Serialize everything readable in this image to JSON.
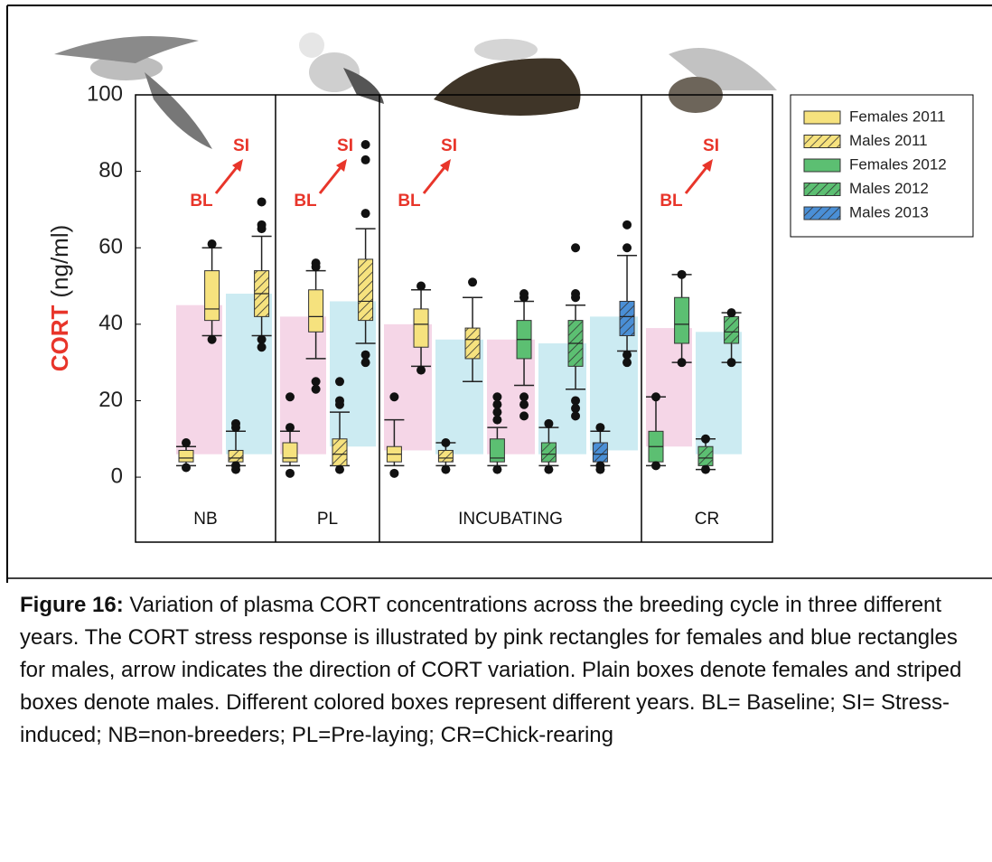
{
  "chart_data": {
    "type": "box",
    "ylabel": "CORT",
    "ylabel_unit": "(ng/ml)",
    "ylim": [
      -17,
      100
    ],
    "yticks": [
      0,
      20,
      40,
      60,
      80,
      100
    ],
    "groups": [
      "NB",
      "PL",
      "INCUBATING",
      "CR"
    ],
    "annotations": {
      "baseline": "BL",
      "stress": "SI",
      "color": "#e8352a"
    },
    "series": [
      {
        "name": "Females 2011",
        "color": "#f6e27e",
        "hatch": false,
        "response_color": "#f3cfe3"
      },
      {
        "name": "Males 2011",
        "color": "#f6e27e",
        "hatch": true,
        "response_color": "#c3e8f0"
      },
      {
        "name": "Females 2012",
        "color": "#5cbf72",
        "hatch": false,
        "response_color": "#f3cfe3"
      },
      {
        "name": "Males 2012",
        "color": "#5cbf72",
        "hatch": true,
        "response_color": "#c3e8f0"
      },
      {
        "name": "Males 2013",
        "color": "#4a8fd6",
        "hatch": true,
        "response_color": "#c3e8f0"
      }
    ],
    "pairs": [
      {
        "group": 0,
        "series": 0,
        "response": [
          6,
          45
        ],
        "bl": {
          "stats": [
            3,
            4,
            5,
            7,
            8
          ],
          "outliers": [
            9,
            2.5
          ]
        },
        "si": {
          "stats": [
            37,
            41,
            44,
            54,
            60
          ],
          "outliers": [
            61,
            36
          ]
        }
      },
      {
        "group": 0,
        "series": 1,
        "response": [
          6,
          48
        ],
        "bl": {
          "stats": [
            3,
            4,
            5,
            7,
            12
          ],
          "outliers": [
            14,
            13,
            2,
            3
          ]
        },
        "si": {
          "stats": [
            37,
            42,
            48,
            54,
            63
          ],
          "outliers": [
            72,
            66,
            65,
            36,
            34
          ]
        }
      },
      {
        "group": 1,
        "series": 0,
        "response": [
          6,
          42
        ],
        "bl": {
          "stats": [
            3,
            4,
            5,
            9,
            12
          ],
          "outliers": [
            21,
            13,
            1
          ]
        },
        "si": {
          "stats": [
            31,
            38,
            42,
            49,
            54
          ],
          "outliers": [
            56,
            55,
            25,
            23
          ]
        }
      },
      {
        "group": 1,
        "series": 1,
        "response": [
          8,
          46
        ],
        "bl": {
          "stats": [
            3,
            3,
            6,
            10,
            17
          ],
          "outliers": [
            25,
            20,
            19,
            2
          ]
        },
        "si": {
          "stats": [
            35,
            41,
            46,
            57,
            65
          ],
          "outliers": [
            87,
            83,
            69,
            32,
            30
          ]
        }
      },
      {
        "group": 2,
        "series": 0,
        "response": [
          7,
          40
        ],
        "bl": {
          "stats": [
            3,
            4,
            6,
            8,
            15
          ],
          "outliers": [
            21,
            1
          ]
        },
        "si": {
          "stats": [
            29,
            34,
            40,
            44,
            49
          ],
          "outliers": [
            50,
            28
          ]
        }
      },
      {
        "group": 2,
        "series": 1,
        "response": [
          6,
          36
        ],
        "bl": {
          "stats": [
            3,
            4,
            5,
            7,
            9
          ],
          "outliers": [
            9,
            2
          ]
        },
        "si": {
          "stats": [
            25,
            31,
            36,
            39,
            47
          ],
          "outliers": [
            51
          ]
        }
      },
      {
        "group": 2,
        "series": 2,
        "response": [
          6,
          36
        ],
        "bl": {
          "stats": [
            3,
            4,
            5,
            10,
            13
          ],
          "outliers": [
            21,
            19,
            17,
            15,
            2
          ]
        },
        "si": {
          "stats": [
            24,
            31,
            36,
            41,
            46
          ],
          "outliers": [
            48,
            47,
            21,
            19,
            16
          ]
        }
      },
      {
        "group": 2,
        "series": 3,
        "response": [
          6,
          35
        ],
        "bl": {
          "stats": [
            3,
            4,
            6,
            9,
            13
          ],
          "outliers": [
            14,
            2
          ]
        },
        "si": {
          "stats": [
            23,
            29,
            35,
            41,
            45
          ],
          "outliers": [
            60,
            48,
            47,
            20,
            18,
            16
          ]
        }
      },
      {
        "group": 2,
        "series": 4,
        "response": [
          7,
          42
        ],
        "bl": {
          "stats": [
            3,
            4,
            6,
            9,
            12
          ],
          "outliers": [
            13,
            3,
            2
          ]
        },
        "si": {
          "stats": [
            33,
            37,
            42,
            46,
            58
          ],
          "outliers": [
            66,
            60,
            32,
            30
          ]
        }
      },
      {
        "group": 3,
        "series": 2,
        "response": [
          8,
          39
        ],
        "bl": {
          "stats": [
            3,
            4,
            8,
            12,
            21
          ],
          "outliers": [
            21,
            3
          ]
        },
        "si": {
          "stats": [
            30,
            35,
            40,
            47,
            53
          ],
          "outliers": [
            53,
            30
          ]
        }
      },
      {
        "group": 3,
        "series": 3,
        "response": [
          6,
          38
        ],
        "bl": {
          "stats": [
            2,
            3,
            5,
            8,
            10
          ],
          "outliers": [
            10,
            2
          ]
        },
        "si": {
          "stats": [
            30,
            35,
            38,
            42,
            43
          ],
          "outliers": [
            43,
            30
          ]
        }
      }
    ]
  },
  "caption": {
    "label": "Figure 16:",
    "text": "Variation of plasma CORT concentrations across the breeding cycle in three different years. The CORT stress response is illustrated by pink rectangles for females and blue rectangles for males, arrow indicates the direction of CORT variation. Plain boxes denote females and striped boxes denote males. Different colored boxes represent different years. BL= Baseline; SI= Stress-induced; NB=non-breeders; PL=Pre-laying; CR=Chick-rearing"
  }
}
